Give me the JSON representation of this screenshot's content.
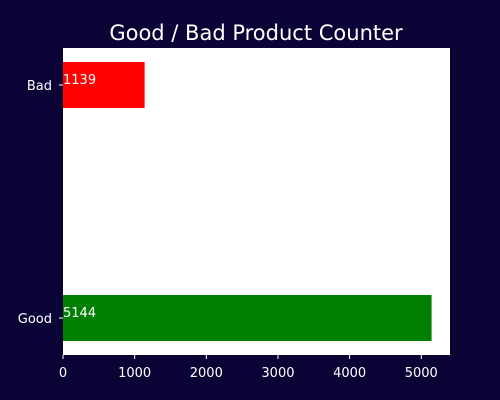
{
  "chart_data": {
    "type": "bar",
    "orientation": "horizontal",
    "title": "Good / Bad Product Counter",
    "xlabel": "",
    "ylabel": "",
    "categories": [
      "Good",
      "Bad"
    ],
    "values": [
      5144,
      1139
    ],
    "bar_colors": [
      "#008000",
      "#ff0000"
    ],
    "data_labels": [
      "5144",
      "1139"
    ],
    "x_ticks": [
      0,
      1000,
      2000,
      3000,
      4000,
      5000
    ],
    "xlim": [
      0,
      5401
    ],
    "grid": false,
    "legend": "none",
    "colors": {
      "background": "#0b0336",
      "plot_area": "#ffffff",
      "text": "#ffffff"
    }
  }
}
